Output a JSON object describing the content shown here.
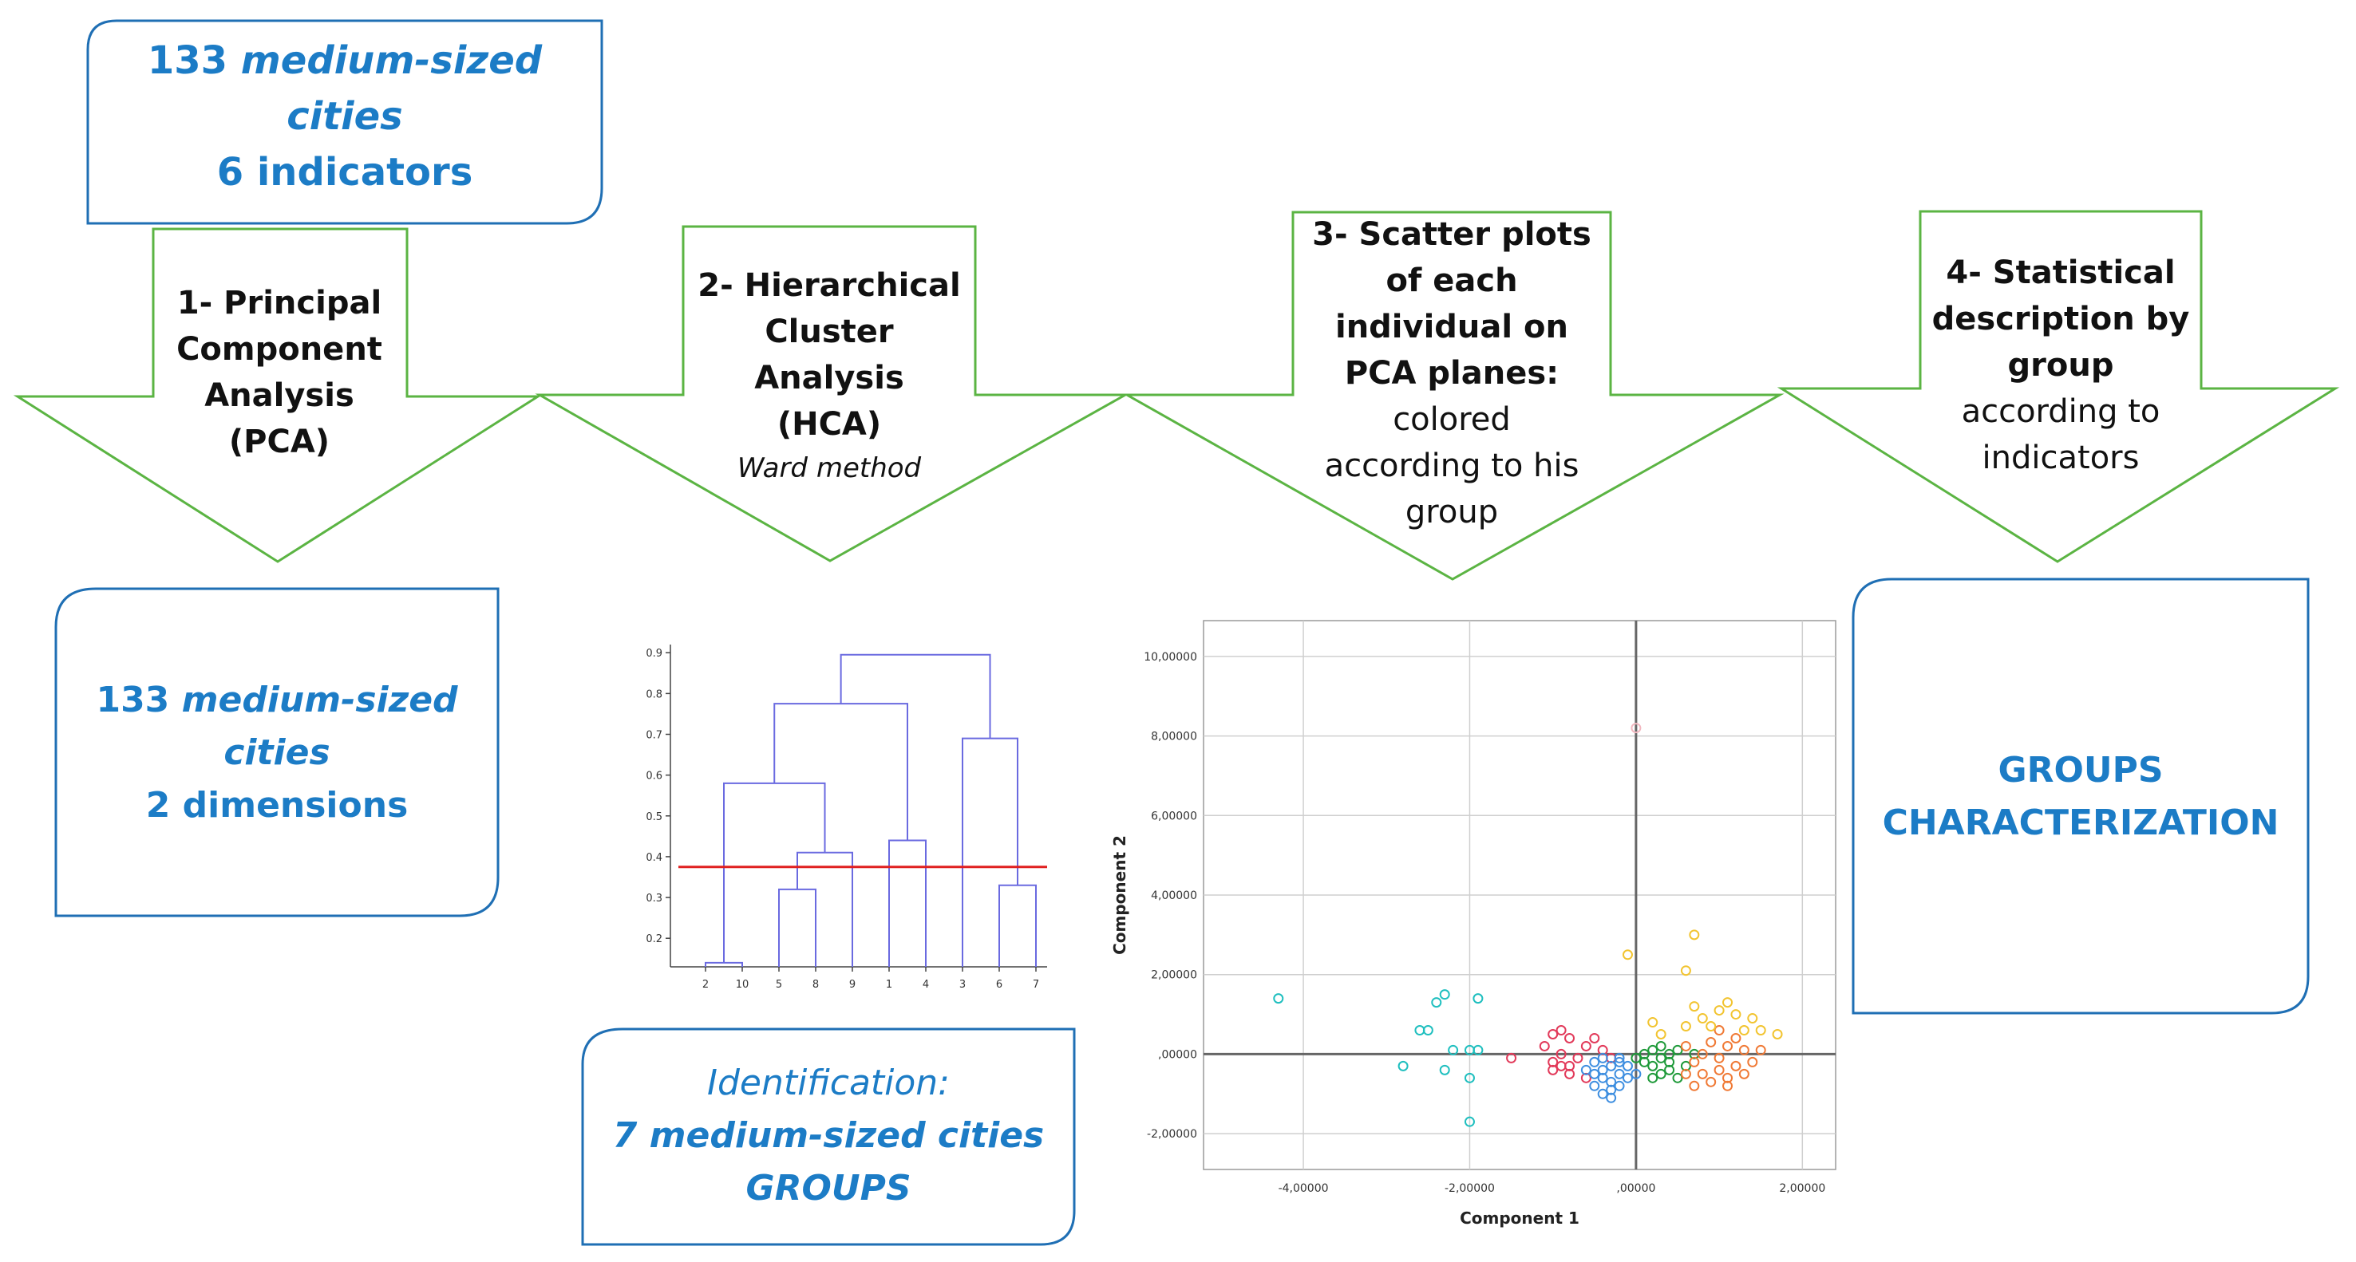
{
  "top_input": {
    "line1_num": "133 ",
    "line1_em": "medium-sized",
    "line2_em": "cities",
    "line3": "6 indicators"
  },
  "steps": [
    {
      "lines": [
        "1- Principal",
        "Component",
        "Analysis",
        "(PCA)"
      ]
    },
    {
      "lines": [
        "2- Hierarchical",
        "Cluster",
        "Analysis",
        "(HCA)"
      ],
      "method": "Ward method"
    },
    {
      "bold_lines": [
        "3- Scatter plots",
        "of each",
        "individual on",
        "PCA planes:"
      ],
      "reg_lines": [
        "colored",
        "according to his",
        "group"
      ]
    },
    {
      "bold_lines": [
        "4- Statistical",
        "description by",
        "group"
      ],
      "reg_lines": [
        "according to",
        "indicators"
      ]
    }
  ],
  "result_pca": {
    "line1_num": "133 ",
    "line1_em": "medium-sized",
    "line2_em": "cities",
    "line3": "2 dimensions"
  },
  "result_hca": {
    "line1": "Identification:",
    "line2": "7 medium-sized cities",
    "line3": "GROUPS"
  },
  "result_groups": {
    "line1": "GROUPS",
    "line2": "CHARACTERIZATION"
  },
  "colors": {
    "arrow": "#5bb443",
    "box": "#1f6fb4",
    "text_blue": "#1c7cc6",
    "dendro": "#6a6ae0",
    "cut": "#e02020"
  },
  "chart_data": [
    {
      "type": "dendrogram",
      "leaf_order": [
        "2",
        "10",
        "5",
        "8",
        "9",
        "1",
        "4",
        "3",
        "6",
        "7"
      ],
      "y_ticks": [
        "0.2",
        "0.3",
        "0.4",
        "0.5",
        "0.6",
        "0.7",
        "0.8",
        "0.9"
      ],
      "ylim": [
        0.13,
        0.92
      ],
      "cut_height": 0.375,
      "merges": [
        {
          "a": "2",
          "b": "10",
          "h": 0.14
        },
        {
          "a": "5",
          "b": "8",
          "h": 0.32
        },
        {
          "a": "{5,8}",
          "b": "9",
          "h": 0.41
        },
        {
          "a": "{2,10}",
          "b": "{5,8,9}",
          "h": 0.58
        },
        {
          "a": "1",
          "b": "4",
          "h": 0.44
        },
        {
          "a": "{2,10,5,8,9}",
          "b": "{1,4}",
          "h": 0.775
        },
        {
          "a": "6",
          "b": "7",
          "h": 0.33
        },
        {
          "a": "3",
          "b": "{6,7}",
          "h": 0.69
        },
        {
          "a": "{2,10,5,8,9,1,4}",
          "b": "{3,6,7}",
          "h": 0.895
        }
      ]
    },
    {
      "type": "scatter",
      "xlabel": "Component 1",
      "ylabel": "Component 2",
      "xlim": [
        -5.2,
        2.4
      ],
      "ylim": [
        -2.9,
        10.9
      ],
      "x_ticks": [
        "-4,00000",
        "-2,00000",
        ",00000",
        "2,00000"
      ],
      "y_ticks": [
        "-2,00000",
        ",00000",
        "2,00000",
        "4,00000",
        "6,00000",
        "8,00000",
        "10,00000"
      ],
      "series": [
        {
          "name": "group-cyan",
          "color": "#1fbfbf",
          "points": [
            [
              -4.3,
              1.4
            ],
            [
              -2.3,
              1.5
            ],
            [
              -2.4,
              1.3
            ],
            [
              -2.5,
              0.6
            ],
            [
              -2.6,
              0.6
            ],
            [
              -1.9,
              1.4
            ],
            [
              -2.2,
              0.1
            ],
            [
              -2.0,
              0.1
            ],
            [
              -1.9,
              0.1
            ],
            [
              -2.8,
              -0.3
            ],
            [
              -2.3,
              -0.4
            ],
            [
              -2.0,
              -0.6
            ],
            [
              -2.0,
              -1.7
            ]
          ]
        },
        {
          "name": "group-red",
          "color": "#e23a5a",
          "points": [
            [
              -1.0,
              0.5
            ],
            [
              -0.9,
              0.6
            ],
            [
              -0.8,
              0.4
            ],
            [
              -1.1,
              0.2
            ],
            [
              -0.9,
              0.0
            ],
            [
              -1.0,
              -0.2
            ],
            [
              -0.8,
              -0.3
            ],
            [
              -0.6,
              0.2
            ],
            [
              -0.7,
              -0.1
            ],
            [
              -0.5,
              0.4
            ],
            [
              -1.0,
              -0.4
            ],
            [
              -0.6,
              -0.6
            ],
            [
              -0.4,
              0.1
            ],
            [
              -0.3,
              -0.1
            ],
            [
              -1.5,
              -0.1
            ],
            [
              -0.8,
              -0.5
            ],
            [
              -0.9,
              -0.3
            ]
          ]
        },
        {
          "name": "group-blue",
          "color": "#3f8fe0",
          "points": [
            [
              -0.5,
              -0.2
            ],
            [
              -0.4,
              -0.4
            ],
            [
              -0.3,
              -0.3
            ],
            [
              -0.2,
              -0.1
            ],
            [
              -0.4,
              -0.6
            ],
            [
              -0.3,
              -0.7
            ],
            [
              -0.2,
              -0.5
            ],
            [
              -0.1,
              -0.3
            ],
            [
              -0.5,
              -0.8
            ],
            [
              -0.4,
              -1.0
            ],
            [
              -0.3,
              -0.9
            ],
            [
              -0.2,
              -0.8
            ],
            [
              -0.1,
              -0.6
            ],
            [
              -0.4,
              -0.1
            ],
            [
              -0.6,
              -0.4
            ],
            [
              -0.2,
              -0.2
            ],
            [
              -0.3,
              -1.1
            ],
            [
              0.0,
              -0.5
            ],
            [
              -0.5,
              -0.5
            ]
          ]
        },
        {
          "name": "group-green",
          "color": "#1f9a3a",
          "points": [
            [
              0.1,
              0.0
            ],
            [
              0.2,
              0.1
            ],
            [
              0.3,
              -0.1
            ],
            [
              0.4,
              0.0
            ],
            [
              0.2,
              -0.3
            ],
            [
              0.3,
              -0.5
            ],
            [
              0.4,
              -0.2
            ],
            [
              0.5,
              0.1
            ],
            [
              0.1,
              -0.2
            ],
            [
              0.6,
              -0.3
            ],
            [
              0.5,
              -0.6
            ],
            [
              0.2,
              -0.6
            ],
            [
              0.4,
              -0.4
            ],
            [
              0.0,
              -0.1
            ],
            [
              0.7,
              0.0
            ],
            [
              0.3,
              0.2
            ]
          ]
        },
        {
          "name": "group-orange",
          "color": "#f07a36",
          "points": [
            [
              0.6,
              0.2
            ],
            [
              0.7,
              -0.2
            ],
            [
              0.8,
              0.0
            ],
            [
              0.9,
              0.3
            ],
            [
              1.0,
              -0.1
            ],
            [
              1.1,
              0.2
            ],
            [
              1.2,
              -0.3
            ],
            [
              1.3,
              0.1
            ],
            [
              0.8,
              -0.5
            ],
            [
              0.9,
              -0.7
            ],
            [
              1.0,
              -0.4
            ],
            [
              1.1,
              -0.6
            ],
            [
              1.2,
              0.4
            ],
            [
              1.4,
              -0.2
            ],
            [
              0.7,
              -0.8
            ],
            [
              1.5,
              0.1
            ],
            [
              1.3,
              -0.5
            ],
            [
              0.6,
              -0.5
            ],
            [
              1.0,
              0.6
            ],
            [
              1.1,
              -0.8
            ]
          ]
        },
        {
          "name": "group-yellow",
          "color": "#f2c430",
          "points": [
            [
              0.7,
              3.0
            ],
            [
              0.6,
              2.1
            ],
            [
              -0.1,
              2.5
            ],
            [
              0.7,
              1.2
            ],
            [
              1.1,
              1.3
            ],
            [
              0.8,
              0.9
            ],
            [
              1.2,
              1.0
            ],
            [
              0.9,
              0.7
            ],
            [
              1.4,
              0.9
            ],
            [
              1.5,
              0.6
            ],
            [
              1.7,
              0.5
            ],
            [
              0.2,
              0.8
            ],
            [
              0.3,
              0.5
            ],
            [
              1.0,
              1.1
            ],
            [
              0.6,
              0.7
            ],
            [
              1.3,
              0.6
            ]
          ]
        },
        {
          "name": "outlier",
          "color": "#f2b8c0",
          "points": [
            [
              0.0,
              8.2
            ]
          ]
        }
      ]
    }
  ]
}
